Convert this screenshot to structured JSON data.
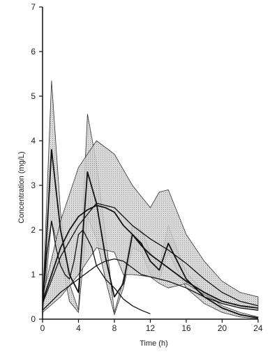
{
  "chart_data": {
    "type": "line",
    "xlabel": "Time (h)",
    "ylabel": "Concentration (mg/L)",
    "xlim": [
      0,
      24
    ],
    "ylim": [
      0,
      7
    ],
    "xticks": [
      0,
      4,
      8,
      12,
      16,
      20,
      24
    ],
    "yticks": [
      0,
      1,
      2,
      3,
      4,
      5,
      6,
      7
    ],
    "grid": false,
    "legend": "none",
    "colors": {
      "line": "#111111",
      "band_fill": "#d2d2d2",
      "band_edge": "#333333",
      "axis": "#111111"
    },
    "bands": [
      {
        "upper": [
          [
            0,
            0.3
          ],
          [
            1,
            5.35
          ],
          [
            2,
            2.4
          ],
          [
            3,
            0.8
          ],
          [
            4,
            0.2
          ],
          [
            5,
            4.6
          ],
          [
            6,
            3.5
          ],
          [
            7,
            1.9
          ],
          [
            8,
            0.15
          ],
          [
            9,
            0.9
          ],
          [
            10,
            2.1
          ],
          [
            11,
            2.0
          ],
          [
            12,
            1.5
          ],
          [
            13,
            1.2
          ],
          [
            14,
            2.1
          ],
          [
            15,
            1.55
          ],
          [
            16,
            1.05
          ],
          [
            18,
            0.6
          ],
          [
            20,
            0.3
          ],
          [
            22,
            0.15
          ],
          [
            24,
            0.05
          ]
        ],
        "lower": [
          [
            0,
            0.05
          ],
          [
            1,
            2.2
          ],
          [
            2,
            1.4
          ],
          [
            3,
            0.4
          ],
          [
            4,
            0.15
          ],
          [
            5,
            2.3
          ],
          [
            6,
            1.8
          ],
          [
            7,
            0.9
          ],
          [
            8,
            0.1
          ],
          [
            9,
            0.7
          ],
          [
            10,
            1.6
          ],
          [
            11,
            1.5
          ],
          [
            12,
            1.0
          ],
          [
            13,
            0.9
          ],
          [
            14,
            1.5
          ],
          [
            15,
            1.1
          ],
          [
            16,
            0.7
          ],
          [
            18,
            0.35
          ],
          [
            20,
            0.15
          ],
          [
            22,
            0.05
          ],
          [
            24,
            0.01
          ]
        ]
      },
      {
        "upper": [
          [
            0,
            0.5
          ],
          [
            2,
            2.2
          ],
          [
            4,
            3.4
          ],
          [
            6,
            4.0
          ],
          [
            8,
            3.7
          ],
          [
            10,
            3.0
          ],
          [
            12,
            2.5
          ],
          [
            13,
            2.85
          ],
          [
            14,
            2.9
          ],
          [
            15,
            2.4
          ],
          [
            16,
            1.9
          ],
          [
            18,
            1.3
          ],
          [
            20,
            0.85
          ],
          [
            22,
            0.6
          ],
          [
            24,
            0.5
          ]
        ],
        "lower": [
          [
            0,
            0.15
          ],
          [
            2,
            0.5
          ],
          [
            4,
            1.0
          ],
          [
            6,
            1.6
          ],
          [
            8,
            1.5
          ],
          [
            9,
            1.0
          ],
          [
            10,
            1.0
          ],
          [
            12,
            0.95
          ],
          [
            13,
            0.8
          ],
          [
            14,
            0.7
          ],
          [
            16,
            0.8
          ],
          [
            18,
            0.55
          ],
          [
            20,
            0.35
          ],
          [
            22,
            0.25
          ],
          [
            24,
            0.2
          ]
        ]
      }
    ],
    "series": [
      {
        "values": [
          [
            0,
            0.2
          ],
          [
            1,
            3.8
          ],
          [
            2,
            2.0
          ],
          [
            3,
            1.0
          ],
          [
            4,
            0.6
          ],
          [
            5,
            3.3
          ],
          [
            6,
            2.6
          ],
          [
            7,
            1.4
          ],
          [
            8,
            0.5
          ],
          [
            9,
            0.8
          ],
          [
            10,
            1.9
          ],
          [
            11,
            1.7
          ],
          [
            12,
            1.3
          ],
          [
            13,
            1.1
          ],
          [
            14,
            1.7
          ],
          [
            15,
            1.3
          ],
          [
            16,
            0.9
          ],
          [
            18,
            0.5
          ],
          [
            20,
            0.25
          ],
          [
            22,
            0.1
          ],
          [
            24,
            0.03
          ]
        ]
      },
      {
        "values": [
          [
            0,
            0.35
          ],
          [
            2,
            1.4
          ],
          [
            4,
            2.1
          ],
          [
            6,
            2.6
          ],
          [
            8,
            2.5
          ],
          [
            10,
            2.1
          ],
          [
            12,
            1.8
          ],
          [
            14,
            1.55
          ],
          [
            16,
            1.25
          ],
          [
            18,
            0.9
          ],
          [
            20,
            0.6
          ],
          [
            22,
            0.4
          ],
          [
            24,
            0.3
          ]
        ]
      },
      {
        "values": [
          [
            0,
            0.3
          ],
          [
            0.5,
            1.5
          ],
          [
            1,
            2.2
          ],
          [
            1.5,
            1.6
          ],
          [
            2,
            1.2
          ],
          [
            2.5,
            1.0
          ],
          [
            3,
            0.9
          ],
          [
            3.5,
            1.3
          ],
          [
            4,
            1.9
          ],
          [
            4.5,
            2.0
          ],
          [
            5,
            1.8
          ],
          [
            5.5,
            1.6
          ],
          [
            6,
            1.2
          ],
          [
            7,
            0.9
          ],
          [
            8,
            0.7
          ],
          [
            9,
            0.45
          ],
          [
            10,
            0.3
          ],
          [
            11,
            0.2
          ],
          [
            12,
            0.12
          ]
        ]
      },
      {
        "values": [
          [
            0,
            0.2
          ],
          [
            1,
            0.4
          ],
          [
            2,
            0.6
          ],
          [
            3,
            0.75
          ],
          [
            4,
            0.9
          ],
          [
            5,
            1.05
          ],
          [
            6,
            1.2
          ],
          [
            7,
            1.3
          ],
          [
            8,
            1.35
          ],
          [
            9,
            1.3
          ],
          [
            10,
            1.15
          ],
          [
            11,
            1.0
          ],
          [
            12,
            0.95
          ],
          [
            14,
            0.85
          ],
          [
            16,
            0.7
          ],
          [
            18,
            0.5
          ],
          [
            20,
            0.35
          ],
          [
            22,
            0.25
          ],
          [
            24,
            0.2
          ]
        ]
      },
      {
        "values": [
          [
            0,
            0.4
          ],
          [
            1,
            1.0
          ],
          [
            2,
            1.6
          ],
          [
            3,
            2.0
          ],
          [
            4,
            2.3
          ],
          [
            5,
            2.45
          ],
          [
            6,
            2.55
          ],
          [
            7,
            2.5
          ],
          [
            8,
            2.4
          ],
          [
            9,
            2.1
          ],
          [
            10,
            1.9
          ],
          [
            11,
            1.65
          ],
          [
            12,
            1.45
          ],
          [
            14,
            1.15
          ],
          [
            16,
            0.85
          ],
          [
            18,
            0.6
          ],
          [
            20,
            0.4
          ],
          [
            22,
            0.3
          ],
          [
            24,
            0.25
          ]
        ]
      }
    ]
  }
}
